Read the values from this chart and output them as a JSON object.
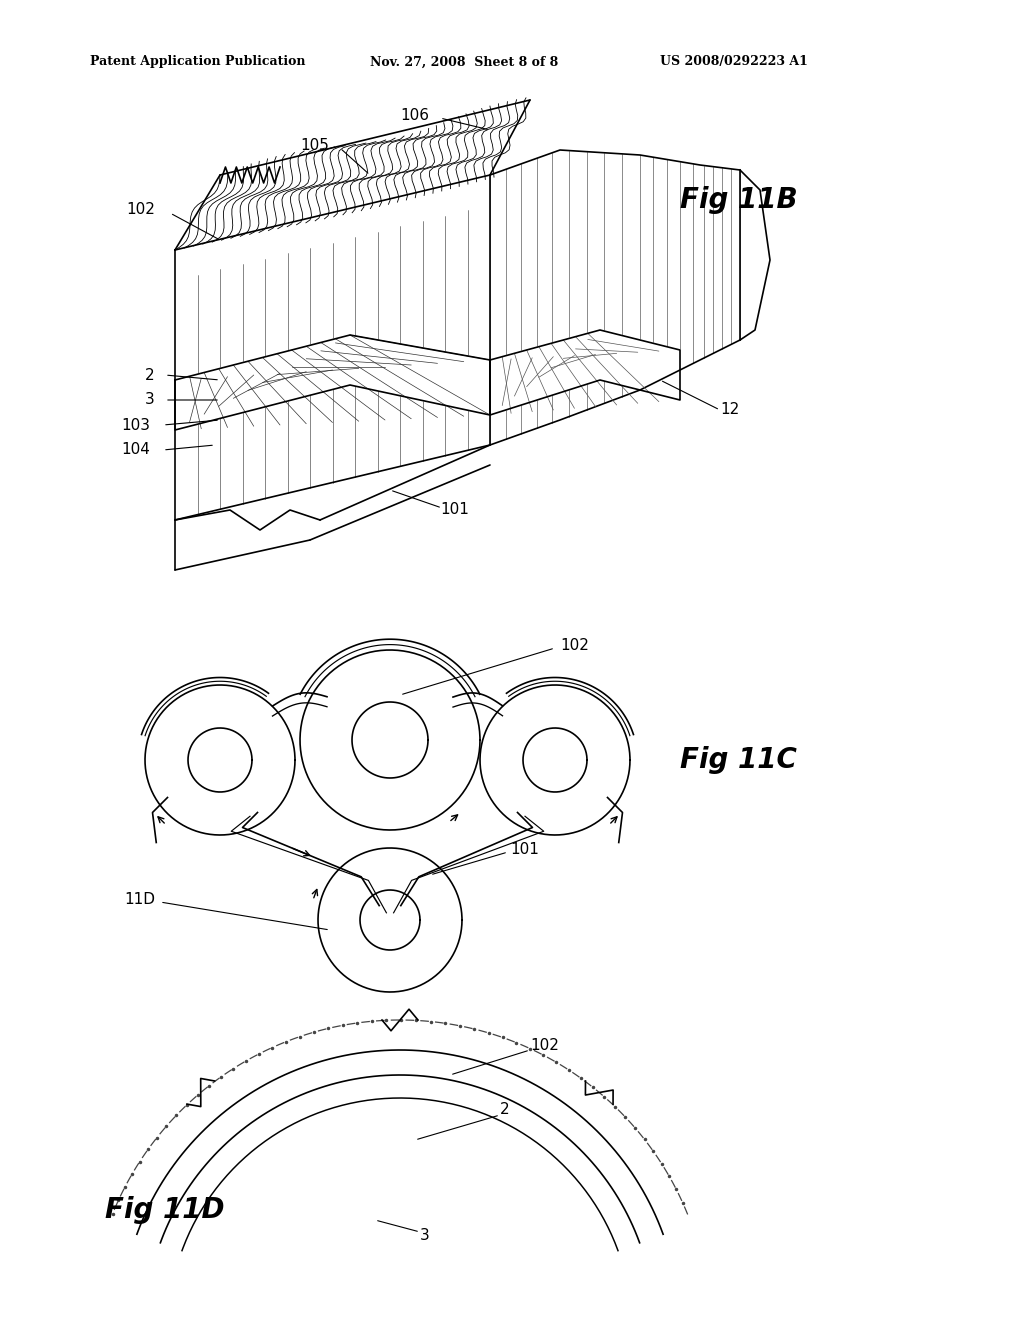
{
  "bg_color": "#ffffff",
  "lc": "#000000",
  "header_text": "Patent Application Publication",
  "header_date": "Nov. 27, 2008  Sheet 8 of 8",
  "header_patent": "US 2008/0292223 A1",
  "fig11b_label": "Fig 11B",
  "fig11c_label": "Fig 11C",
  "fig11d_label": "Fig 11D"
}
